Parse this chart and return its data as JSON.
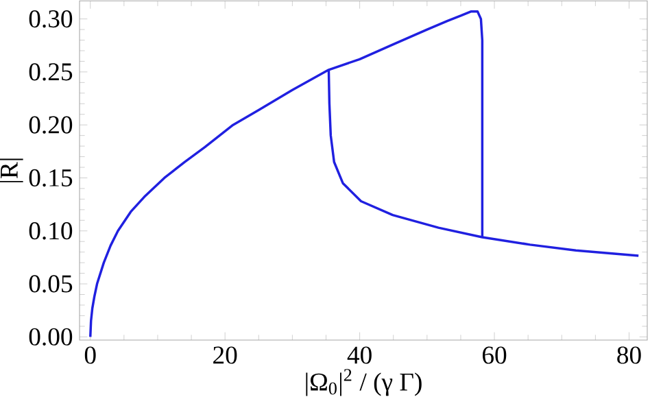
{
  "chart_data": {
    "type": "line",
    "xlabel": "|Ω$_{0}$|$^{2}$ / (γ Γ)",
    "ylabel": "|R|",
    "xlim": [
      -1.6,
      82.7
    ],
    "ylim": [
      -0.003,
      0.317
    ],
    "xticks": [
      0,
      20,
      40,
      60,
      80
    ],
    "yticks": [
      {
        "value": 0,
        "label": "0.00"
      },
      {
        "value": 0.05,
        "label": "0.05"
      },
      {
        "value": 0.1,
        "label": "0.10"
      },
      {
        "value": 0.15,
        "label": "0.15"
      },
      {
        "value": 0.2,
        "label": "0.20"
      },
      {
        "value": 0.25,
        "label": "0.25"
      },
      {
        "value": 0.3,
        "label": "0.30"
      }
    ],
    "grid": false,
    "line_style": "solid",
    "marker": "none",
    "series": [
      {
        "color": "#2020e0",
        "x": [
          0,
          0.1,
          0.3,
          0.6,
          1.0,
          2.0,
          3.0,
          4.1,
          6,
          8,
          11.0,
          14,
          17,
          21.2,
          25,
          30,
          35.4,
          40,
          45,
          50,
          53,
          55,
          56.5,
          57.5,
          58.0,
          58.2,
          58.2
        ],
        "values": [
          0,
          0.015,
          0.027,
          0.038,
          0.05,
          0.07,
          0.086,
          0.1,
          0.118,
          0.132,
          0.15,
          0.165,
          0.179,
          0.2,
          0.214,
          0.233,
          0.252,
          0.262,
          0.276,
          0.29,
          0.298,
          0.303,
          0.307,
          0.307,
          0.3,
          0.28,
          0.094
        ]
      },
      {
        "color": "#2020e0",
        "x": [
          35.4,
          35.5,
          35.7,
          36.2,
          37.5,
          40.2,
          44.9,
          51.7,
          58.2,
          65.3,
          72.1,
          81.4
        ],
        "values": [
          0.252,
          0.22,
          0.19,
          0.165,
          0.145,
          0.128,
          0.115,
          0.103,
          0.094,
          0.087,
          0.0816,
          0.0765
        ]
      }
    ]
  }
}
